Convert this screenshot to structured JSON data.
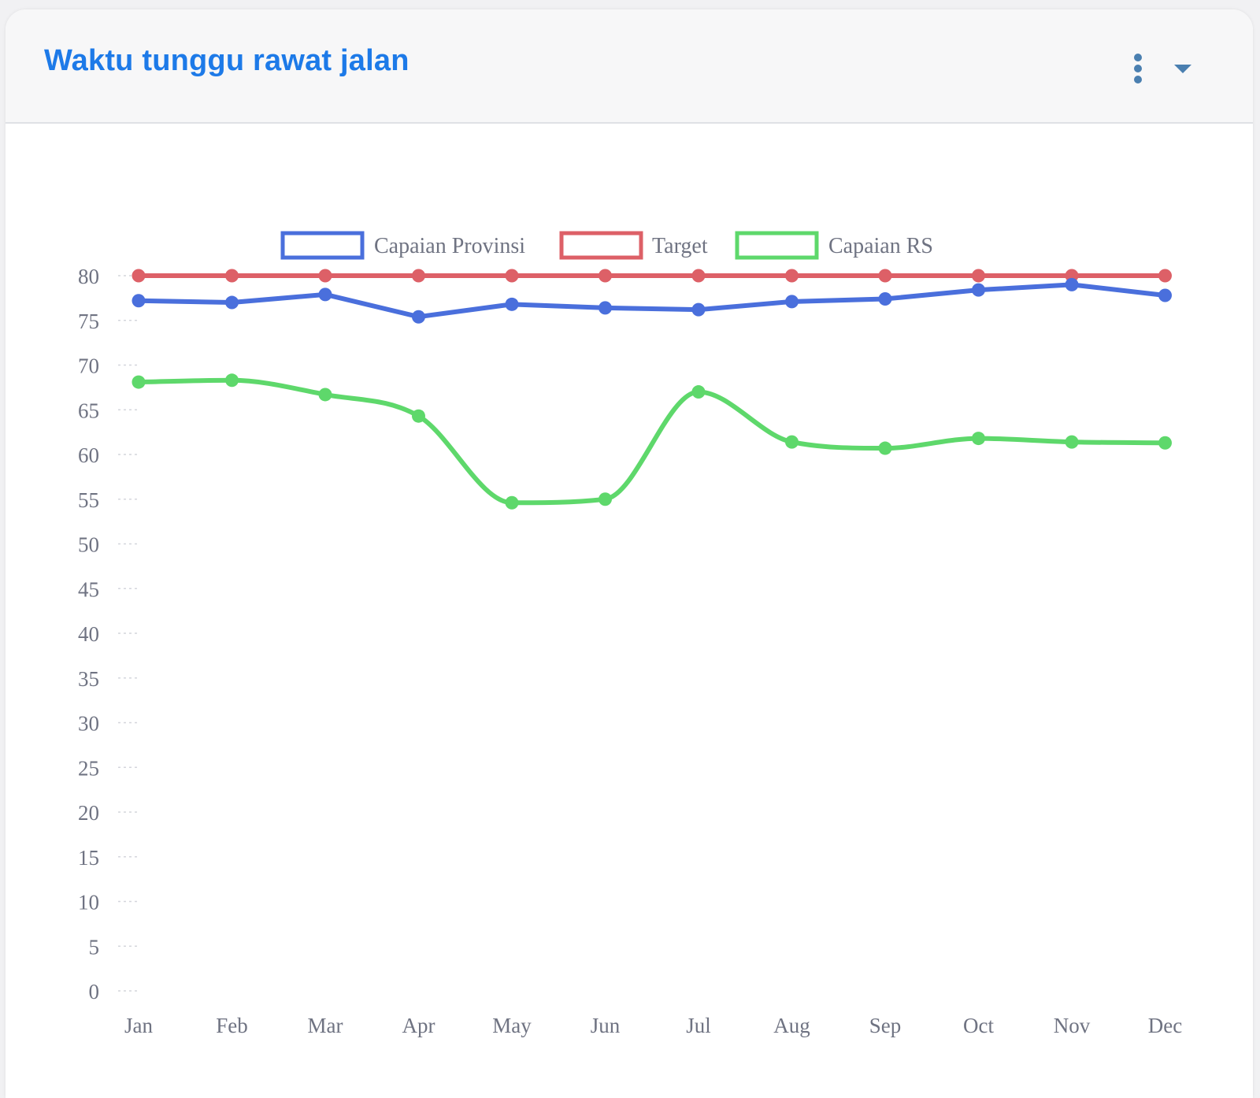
{
  "card": {
    "title": "Waktu tunggu rawat jalan",
    "menu_icon": "kebab-vertical-icon",
    "collapse_icon": "caret-down-icon",
    "accent_color": "#1d7ae8"
  },
  "chart_data": {
    "type": "line",
    "categories": [
      "Jan",
      "Feb",
      "Mar",
      "Apr",
      "May",
      "Jun",
      "Jul",
      "Aug",
      "Sep",
      "Oct",
      "Nov",
      "Dec"
    ],
    "ylim": [
      0,
      80
    ],
    "yticks": [
      0,
      5,
      10,
      15,
      20,
      25,
      30,
      35,
      40,
      45,
      50,
      55,
      60,
      65,
      70,
      75,
      80
    ],
    "grid": "y-axis dashed",
    "legend": "top-center",
    "series": [
      {
        "name": "Capaian Provinsi",
        "color": "#4a6fdc",
        "smooth": false,
        "values": [
          77.2,
          77.0,
          77.9,
          75.4,
          76.8,
          76.4,
          76.2,
          77.1,
          77.4,
          78.4,
          79.0,
          77.8
        ]
      },
      {
        "name": "Target",
        "color": "#dd6067",
        "smooth": false,
        "values": [
          80,
          80,
          80,
          80,
          80,
          80,
          80,
          80,
          80,
          80,
          80,
          80
        ]
      },
      {
        "name": "Capaian RS",
        "color": "#5ed86b",
        "smooth": true,
        "values": [
          68.1,
          68.3,
          66.7,
          64.3,
          54.6,
          55.0,
          67.0,
          61.4,
          60.7,
          61.8,
          61.4,
          61.3
        ]
      }
    ]
  }
}
